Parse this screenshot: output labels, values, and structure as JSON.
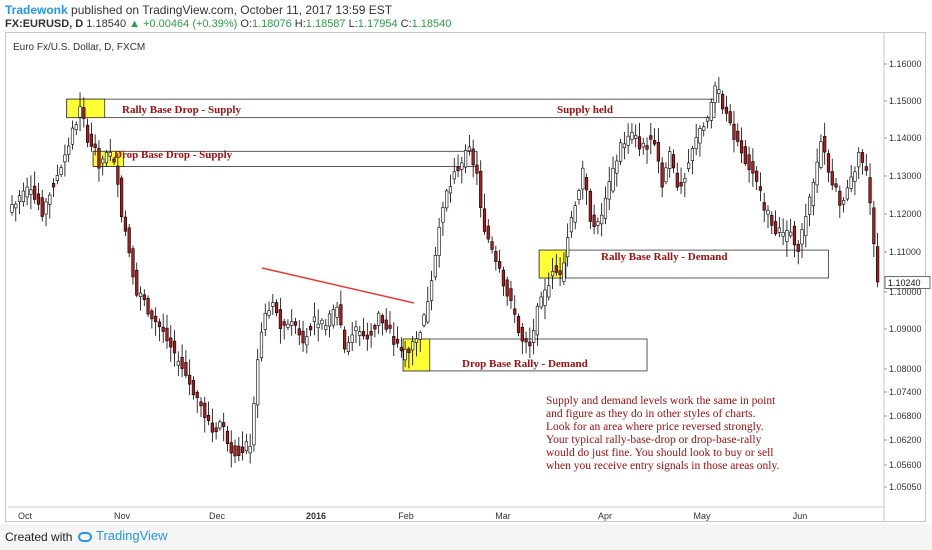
{
  "header": {
    "author": "Tradewonk",
    "published": "published on TradingView.com, October 11, 2017 13:59 EST",
    "symbol": "FX:EURUSD, D",
    "last": "1.18540",
    "change_arrow": "▲",
    "change": "+0.00464 (+0.39%)",
    "o_label": "O:",
    "o_value": "1.18076",
    "h_label": "H:",
    "h_value": "1.18587",
    "l_label": "L:",
    "l_value": "1.17954",
    "c_label": "C:",
    "c_value": "1.18540"
  },
  "chart_title": "Euro Fx/U.S. Dollar, D, FXCM",
  "footer": {
    "created": "Created with",
    "brand": "TradingView",
    "icon": "tradingview-logo-icon"
  },
  "colors": {
    "up": "#ffffff",
    "down": "#b01c1c",
    "wick": "#000000",
    "zone": "#ffff33",
    "annotation": "#a01010",
    "trendline": "#e53935",
    "last_price_tag": "#4d4d4d"
  },
  "chart_data": {
    "type": "candlestick",
    "title": "Euro Fx/U.S. Dollar, D, FXCM",
    "x_ticks": [
      "Oct",
      "Nov",
      "Dec",
      "2016",
      "Feb",
      "Mar",
      "Apr",
      "May",
      "Jun"
    ],
    "y_ticks": [
      "1.16000",
      "1.15000",
      "1.14000",
      "1.13000",
      "1.12000",
      "1.11000",
      "1.10000",
      "1.09000",
      "1.08000",
      "1.07400",
      "1.06800",
      "1.06200",
      "1.05600",
      "1.05050"
    ],
    "last_price_label": "1.10240",
    "series_path": [
      [
        0,
        1.1225
      ],
      [
        5,
        1.1275
      ],
      [
        8,
        1.1205
      ],
      [
        12,
        1.1305
      ],
      [
        15,
        1.1385
      ],
      [
        18,
        1.1475
      ],
      [
        20,
        1.1405
      ],
      [
        23,
        1.1335
      ],
      [
        26,
        1.1355
      ],
      [
        28,
        1.1295
      ],
      [
        29,
        1.1205
      ],
      [
        31,
        1.1105
      ],
      [
        33,
        1.1005
      ],
      [
        36,
        1.0955
      ],
      [
        39,
        1.0905
      ],
      [
        42,
        1.0855
      ],
      [
        45,
        1.0805
      ],
      [
        48,
        1.0745
      ],
      [
        50,
        1.0705
      ],
      [
        53,
        1.0645
      ],
      [
        55,
        1.0665
      ],
      [
        58,
        1.0605
      ],
      [
        61,
        1.0585
      ],
      [
        63,
        1.0615
      ],
      [
        64,
        1.0695
      ],
      [
        65,
        1.0835
      ],
      [
        67,
        1.0935
      ],
      [
        69,
        1.0975
      ],
      [
        71,
        1.0905
      ],
      [
        74,
        1.0925
      ],
      [
        77,
        1.0875
      ],
      [
        80,
        1.0935
      ],
      [
        83,
        1.0905
      ],
      [
        86,
        1.0965
      ],
      [
        88,
        1.0855
      ],
      [
        91,
        1.0905
      ],
      [
        94,
        1.0875
      ],
      [
        97,
        1.0935
      ],
      [
        100,
        1.0885
      ],
      [
        103,
        1.0835
      ],
      [
        106,
        1.0865
      ],
      [
        109,
        1.0925
      ],
      [
        110,
        1.0985
      ],
      [
        113,
        1.1165
      ],
      [
        115,
        1.1255
      ],
      [
        118,
        1.1325
      ],
      [
        121,
        1.1365
      ],
      [
        123,
        1.1305
      ],
      [
        124,
        1.1205
      ],
      [
        126,
        1.1135
      ],
      [
        129,
        1.1065
      ],
      [
        131,
        1.0995
      ],
      [
        133,
        1.0935
      ],
      [
        135,
        1.0865
      ],
      [
        137,
        1.0855
      ],
      [
        139,
        1.0945
      ],
      [
        141,
        1.0995
      ],
      [
        143,
        1.1065
      ],
      [
        145,
        1.1035
      ],
      [
        147,
        1.1145
      ],
      [
        149,
        1.1235
      ],
      [
        151,
        1.1305
      ],
      [
        153,
        1.1195
      ],
      [
        155,
        1.1165
      ],
      [
        157,
        1.1235
      ],
      [
        159,
        1.1305
      ],
      [
        161,
        1.1385
      ],
      [
        164,
        1.1405
      ],
      [
        167,
        1.1375
      ],
      [
        170,
        1.1395
      ],
      [
        172,
        1.1285
      ],
      [
        174,
        1.1355
      ],
      [
        176,
        1.1275
      ],
      [
        178,
        1.1305
      ],
      [
        180,
        1.1365
      ],
      [
        182,
        1.1425
      ],
      [
        184,
        1.1455
      ],
      [
        186,
        1.1535
      ],
      [
        188,
        1.1495
      ],
      [
        190,
        1.1425
      ],
      [
        192,
        1.1395
      ],
      [
        194,
        1.1345
      ],
      [
        196,
        1.1305
      ],
      [
        198,
        1.1245
      ],
      [
        200,
        1.1205
      ],
      [
        202,
        1.1165
      ],
      [
        204,
        1.1135
      ],
      [
        206,
        1.1155
      ],
      [
        208,
        1.1115
      ],
      [
        210,
        1.1185
      ],
      [
        212,
        1.1275
      ],
      [
        214,
        1.1395
      ],
      [
        216,
        1.1325
      ],
      [
        218,
        1.1255
      ],
      [
        220,
        1.1225
      ],
      [
        222,
        1.1285
      ],
      [
        224,
        1.1355
      ],
      [
        226,
        1.1305
      ],
      [
        228,
        1.1125
      ],
      [
        229,
        1.1025
      ]
    ],
    "zones": [
      {
        "label": "Rally Base Drop - Supply",
        "type": "supply",
        "x_from": 15,
        "x_to": 24,
        "y_low": 1.1455,
        "y_high": 1.1505,
        "extend_to": 186
      },
      {
        "label": "Drop Base Drop - Supply",
        "type": "supply",
        "x_from": 22,
        "x_to": 29,
        "y_low": 1.1325,
        "y_high": 1.1365,
        "extend_to": 123
      },
      {
        "label": "Rally Base Rally - Demand",
        "type": "demand",
        "x_from": 140,
        "x_to": 146,
        "y_low": 1.1035,
        "y_high": 1.1105,
        "extend_to": 216
      },
      {
        "label": "Drop Base Rally - Demand",
        "type": "demand",
        "x_from": 104,
        "x_to": 110,
        "y_low": 1.0795,
        "y_high": 1.0875,
        "extend_to": 168
      }
    ],
    "annotations": [
      {
        "text": "Supply held",
        "type": "label"
      }
    ],
    "note_lines": [
      "Supply and demand levels work the same in point",
      "and figure as they do in other styles of charts.",
      "Look for an area where price reversed strongly.",
      "Your typical rally-base-drop or drop-base-rally",
      "would do just fine. You should look to buy or sell",
      "when you receive entry signals in those areas only."
    ]
  }
}
